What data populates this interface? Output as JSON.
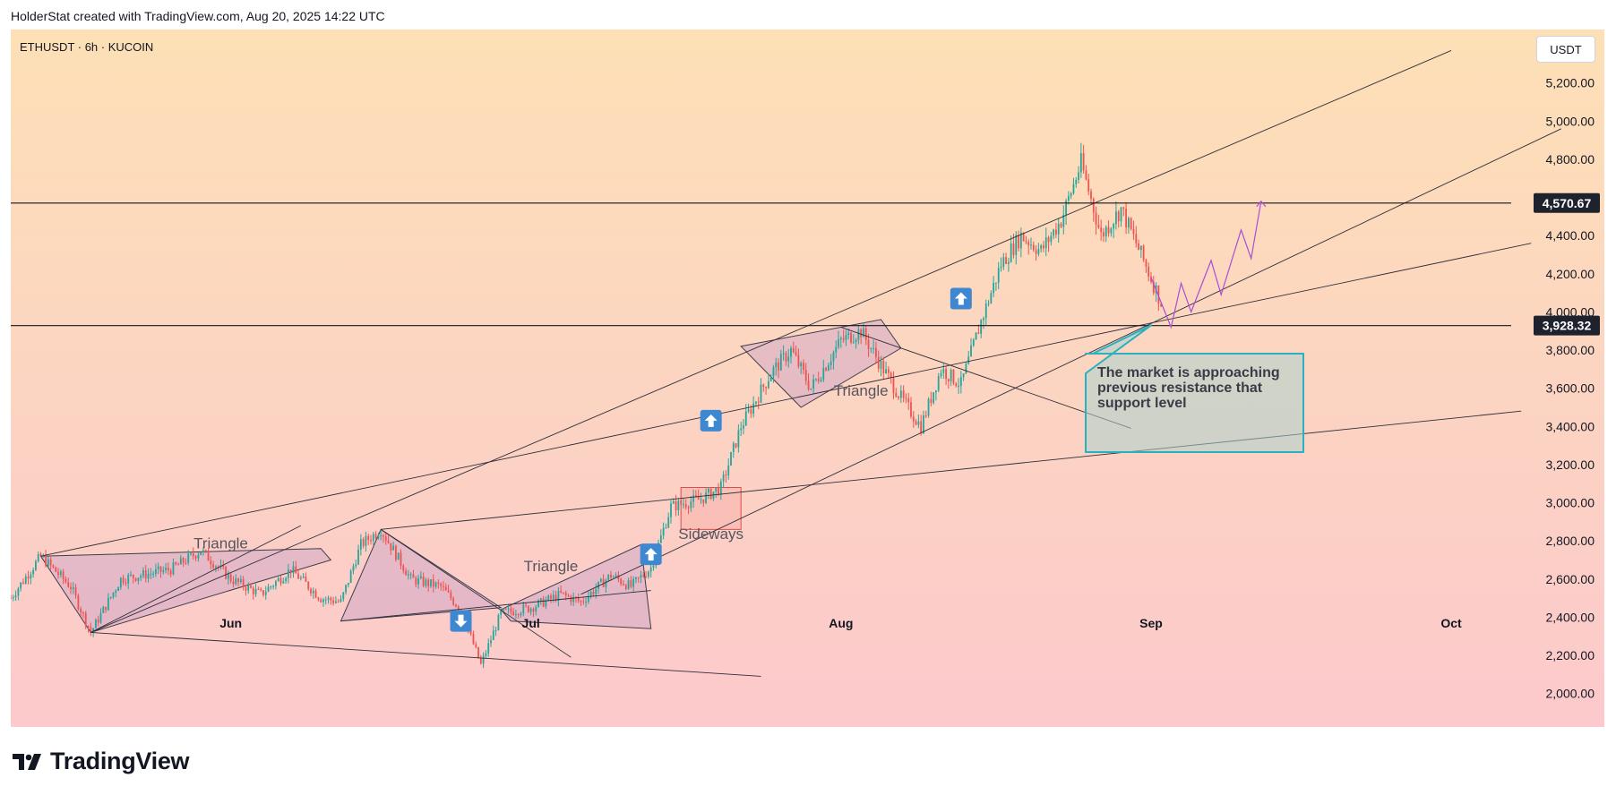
{
  "header": {
    "created_text": "HolderStat created with TradingView.com, Aug 20, 2025 14:22 UTC"
  },
  "symbol_line": "ETHUSDT · 6h · KUCOIN",
  "currency_button": "USDT",
  "brand": {
    "name": "TradingView",
    "icon": "tradingview-logo-icon"
  },
  "colors": {
    "up": "#26a69a",
    "down": "#ef5350",
    "projection": "#a64fd6",
    "callout": "#2ab0c0",
    "pattern": "#c9a0c8",
    "box": "#e04a4a"
  },
  "chart_data": {
    "type": "candlestick",
    "y_axis": {
      "range": [
        1820,
        5480
      ],
      "ticks": [
        "2,000.00",
        "2,200.00",
        "2,400.00",
        "2,600.00",
        "2,800.00",
        "3,000.00",
        "3,200.00",
        "3,400.00",
        "3,600.00",
        "3,800.00",
        "4,000.00",
        "4,200.00",
        "4,400.00",
        "4,600.00",
        "4,800.00",
        "5,000.00",
        "5,200.00"
      ]
    },
    "x_axis": {
      "range": [
        "2025-05-10",
        "2025-10-07"
      ],
      "ticks": [
        {
          "date": "2025-06-01",
          "label": "Jun"
        },
        {
          "date": "2025-07-01",
          "label": "Jul"
        },
        {
          "date": "2025-08-01",
          "label": "Aug"
        },
        {
          "date": "2025-09-01",
          "label": "Sep"
        },
        {
          "date": "2025-10-01",
          "label": "Oct"
        }
      ]
    },
    "price_path": [
      [
        "2025-05-10",
        2500
      ],
      [
        "2025-05-13",
        2720
      ],
      [
        "2025-05-16",
        2560
      ],
      [
        "2025-05-18",
        2320
      ],
      [
        "2025-05-21",
        2600
      ],
      [
        "2025-05-26",
        2650
      ],
      [
        "2025-05-29",
        2750
      ],
      [
        "2025-06-01",
        2600
      ],
      [
        "2025-06-04",
        2520
      ],
      [
        "2025-06-07",
        2650
      ],
      [
        "2025-06-10",
        2500
      ],
      [
        "2025-06-12",
        2480
      ],
      [
        "2025-06-14",
        2780
      ],
      [
        "2025-06-16",
        2860
      ],
      [
        "2025-06-19",
        2600
      ],
      [
        "2025-06-22",
        2560
      ],
      [
        "2025-06-24",
        2440
      ],
      [
        "2025-06-26",
        2150
      ],
      [
        "2025-06-28",
        2420
      ],
      [
        "2025-07-01",
        2450
      ],
      [
        "2025-07-04",
        2520
      ],
      [
        "2025-07-06",
        2480
      ],
      [
        "2025-07-09",
        2620
      ],
      [
        "2025-07-11",
        2560
      ],
      [
        "2025-07-13",
        2660
      ],
      [
        "2025-07-15",
        2980
      ],
      [
        "2025-07-18",
        3020
      ],
      [
        "2025-07-20",
        3080
      ],
      [
        "2025-07-22",
        3400
      ],
      [
        "2025-07-25",
        3680
      ],
      [
        "2025-07-27",
        3800
      ],
      [
        "2025-07-29",
        3600
      ],
      [
        "2025-08-01",
        3850
      ],
      [
        "2025-08-03",
        3900
      ],
      [
        "2025-08-05",
        3720
      ],
      [
        "2025-08-07",
        3550
      ],
      [
        "2025-08-09",
        3400
      ],
      [
        "2025-08-11",
        3700
      ],
      [
        "2025-08-13",
        3620
      ],
      [
        "2025-08-15",
        3950
      ],
      [
        "2025-08-17",
        4250
      ],
      [
        "2025-08-19",
        4400
      ],
      [
        "2025-08-21",
        4320
      ],
      [
        "2025-08-23",
        4480
      ],
      [
        "2025-08-25",
        4780
      ],
      [
        "2025-08-27",
        4400
      ],
      [
        "2025-08-29",
        4540
      ],
      [
        "2025-08-31",
        4300
      ],
      [
        "2025-09-02",
        4050
      ]
    ],
    "levels": [
      {
        "name": "resistance",
        "price": 4570.67,
        "label": "4,570.67"
      },
      {
        "name": "support",
        "price": 3928.32,
        "label": "3,928.32"
      }
    ],
    "trendlines": [
      {
        "name": "upper-channel-line",
        "from": [
          "2025-05-18",
          2320
        ],
        "to": [
          "2025-10-01",
          5370
        ]
      },
      {
        "name": "lower-channel-line",
        "from": [
          "2025-07-06",
          2520
        ],
        "to": [
          "2025-10-12",
          4960
        ]
      },
      {
        "name": "mid-rising-line",
        "from": [
          "2025-05-13",
          2720
        ],
        "to": [
          "2025-10-09",
          4360
        ]
      },
      {
        "name": "long-support-line",
        "from": [
          "2025-06-16",
          2860
        ],
        "to": [
          "2025-10-08",
          3480
        ]
      },
      {
        "name": "descending-line-june",
        "from": [
          "2025-06-16",
          2860
        ],
        "to": [
          "2025-07-05",
          2190
        ]
      },
      {
        "name": "descending-line-aug",
        "from": [
          "2025-08-01",
          3920
        ],
        "to": [
          "2025-08-30",
          3390
        ]
      },
      {
        "name": "lower-support-line",
        "from": [
          "2025-05-18",
          2320
        ],
        "to": [
          "2025-07-24",
          2090
        ]
      },
      {
        "name": "triangle-may-lower",
        "from": [
          "2025-05-18",
          2320
        ],
        "to": [
          "2025-06-08",
          2880
        ]
      },
      {
        "name": "triangle-june-lower",
        "from": [
          "2025-06-12",
          2380
        ],
        "to": [
          "2025-07-13",
          2540
        ]
      }
    ],
    "patterns": [
      {
        "name": "triangle-may",
        "points": [
          [
            "2025-05-13",
            2720
          ],
          [
            "2025-06-10",
            2760
          ],
          [
            "2025-06-11",
            2700
          ],
          [
            "2025-05-18",
            2320
          ]
        ],
        "label": "Triangle",
        "label_at": [
          "2025-05-31",
          2760
        ]
      },
      {
        "name": "triangle-june",
        "points": [
          [
            "2025-06-12",
            2380
          ],
          [
            "2025-06-16",
            2860
          ],
          [
            "2025-06-28",
            2450
          ]
        ]
      },
      {
        "name": "triangle-july",
        "points": [
          [
            "2025-06-28",
            2440
          ],
          [
            "2025-07-12",
            2780
          ],
          [
            "2025-07-13",
            2340
          ],
          [
            "2025-06-29",
            2380
          ]
        ],
        "label": "Triangle",
        "label_at": [
          "2025-07-03",
          2640
        ]
      },
      {
        "name": "triangle-aug",
        "points": [
          [
            "2025-07-22",
            3820
          ],
          [
            "2025-08-05",
            3960
          ],
          [
            "2025-08-07",
            3810
          ],
          [
            "2025-07-28",
            3500
          ]
        ],
        "label": "Triangle",
        "label_at": [
          "2025-08-03",
          3560
        ]
      }
    ],
    "sideways_box": {
      "from": [
        "2025-07-16",
        3080
      ],
      "to": [
        "2025-07-22",
        2860
      ],
      "label": "Sideways",
      "label_at": [
        "2025-07-19",
        2810
      ]
    },
    "arrows": [
      {
        "name": "arrow-down-1",
        "dir": "down",
        "at": [
          "2025-06-24",
          2380
        ]
      },
      {
        "name": "arrow-up-1",
        "dir": "up",
        "at": [
          "2025-07-13",
          2730
        ]
      },
      {
        "name": "arrow-up-2",
        "dir": "up",
        "at": [
          "2025-07-19",
          3430
        ]
      },
      {
        "name": "arrow-up-3",
        "dir": "up",
        "at": [
          "2025-08-13",
          4070
        ]
      }
    ],
    "projection": [
      [
        "2025-09-01",
        4180
      ],
      [
        "2025-09-03",
        3920
      ],
      [
        "2025-09-04",
        4150
      ],
      [
        "2025-09-05",
        4000
      ],
      [
        "2025-09-07",
        4270
      ],
      [
        "2025-09-08",
        4090
      ],
      [
        "2025-09-10",
        4430
      ],
      [
        "2025-09-11",
        4280
      ],
      [
        "2025-09-12",
        4580
      ]
    ],
    "callout": {
      "text": "The market is approaching previous resistance that support level",
      "lines": [
        "The market is approaching",
        "previous resistance that",
        "support level"
      ],
      "pointer_at": [
        "2025-09-01",
        3930
      ]
    }
  }
}
